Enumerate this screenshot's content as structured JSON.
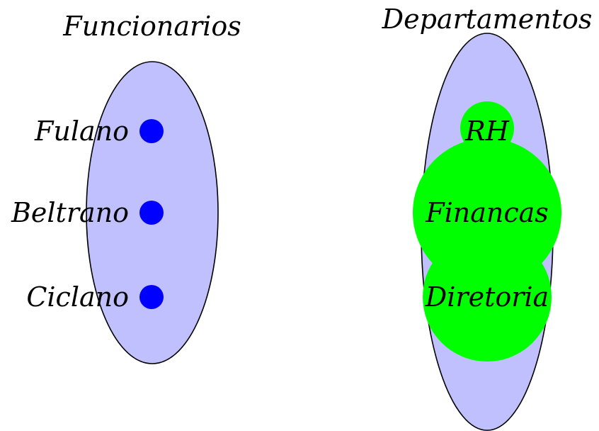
{
  "left_set": {
    "title": "Funcionarios",
    "fill": "#c0c0ff",
    "stroke": "#000000",
    "point_color": "#0000ff",
    "items": [
      {
        "label": "Fulano"
      },
      {
        "label": "Beltrano"
      },
      {
        "label": "Ciclano"
      }
    ]
  },
  "right_set": {
    "title": "Departamentos",
    "fill": "#c0c0ff",
    "stroke": "#000000",
    "node_color": "#00ff00",
    "items": [
      {
        "label": "RH"
      },
      {
        "label": "Financas"
      },
      {
        "label": "Diretoria"
      }
    ]
  }
}
